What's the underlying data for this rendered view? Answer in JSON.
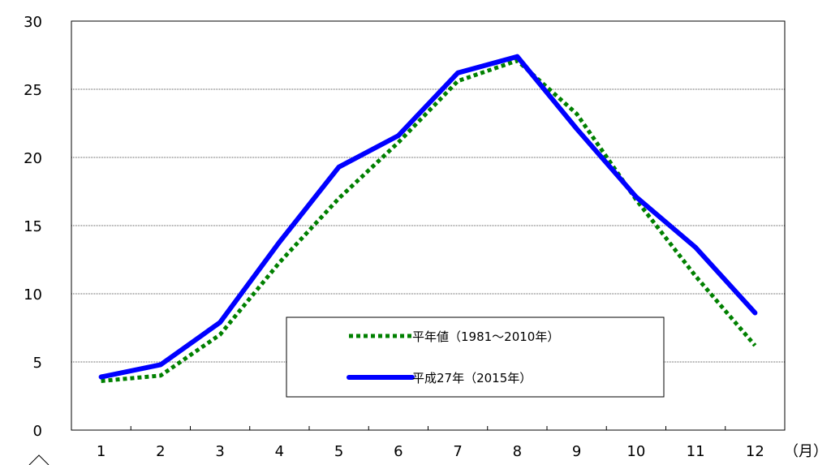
{
  "chart_data": {
    "type": "line",
    "categories": [
      "1",
      "2",
      "3",
      "4",
      "5",
      "6",
      "7",
      "8",
      "9",
      "10",
      "11",
      "12"
    ],
    "xunit": "（月）",
    "ylim": [
      0,
      30
    ],
    "yticks": [
      "0",
      "5",
      "10",
      "15",
      "20",
      "25",
      "30"
    ],
    "grid": "horizontal",
    "legend_position": "inside, lower center",
    "series": [
      {
        "name": "平年値（1981～2010年）",
        "style": "dotted",
        "color": "#008000",
        "values": [
          3.6,
          4.0,
          7.0,
          12.3,
          17.0,
          21.1,
          25.6,
          27.1,
          23.2,
          16.9,
          11.3,
          6.2
        ]
      },
      {
        "name": "平成27年（2015年）",
        "style": "solid",
        "color": "#0000ff",
        "values": [
          3.9,
          4.8,
          7.9,
          13.8,
          19.3,
          21.6,
          26.2,
          27.4,
          22.1,
          17.1,
          13.4,
          8.6
        ]
      }
    ]
  }
}
